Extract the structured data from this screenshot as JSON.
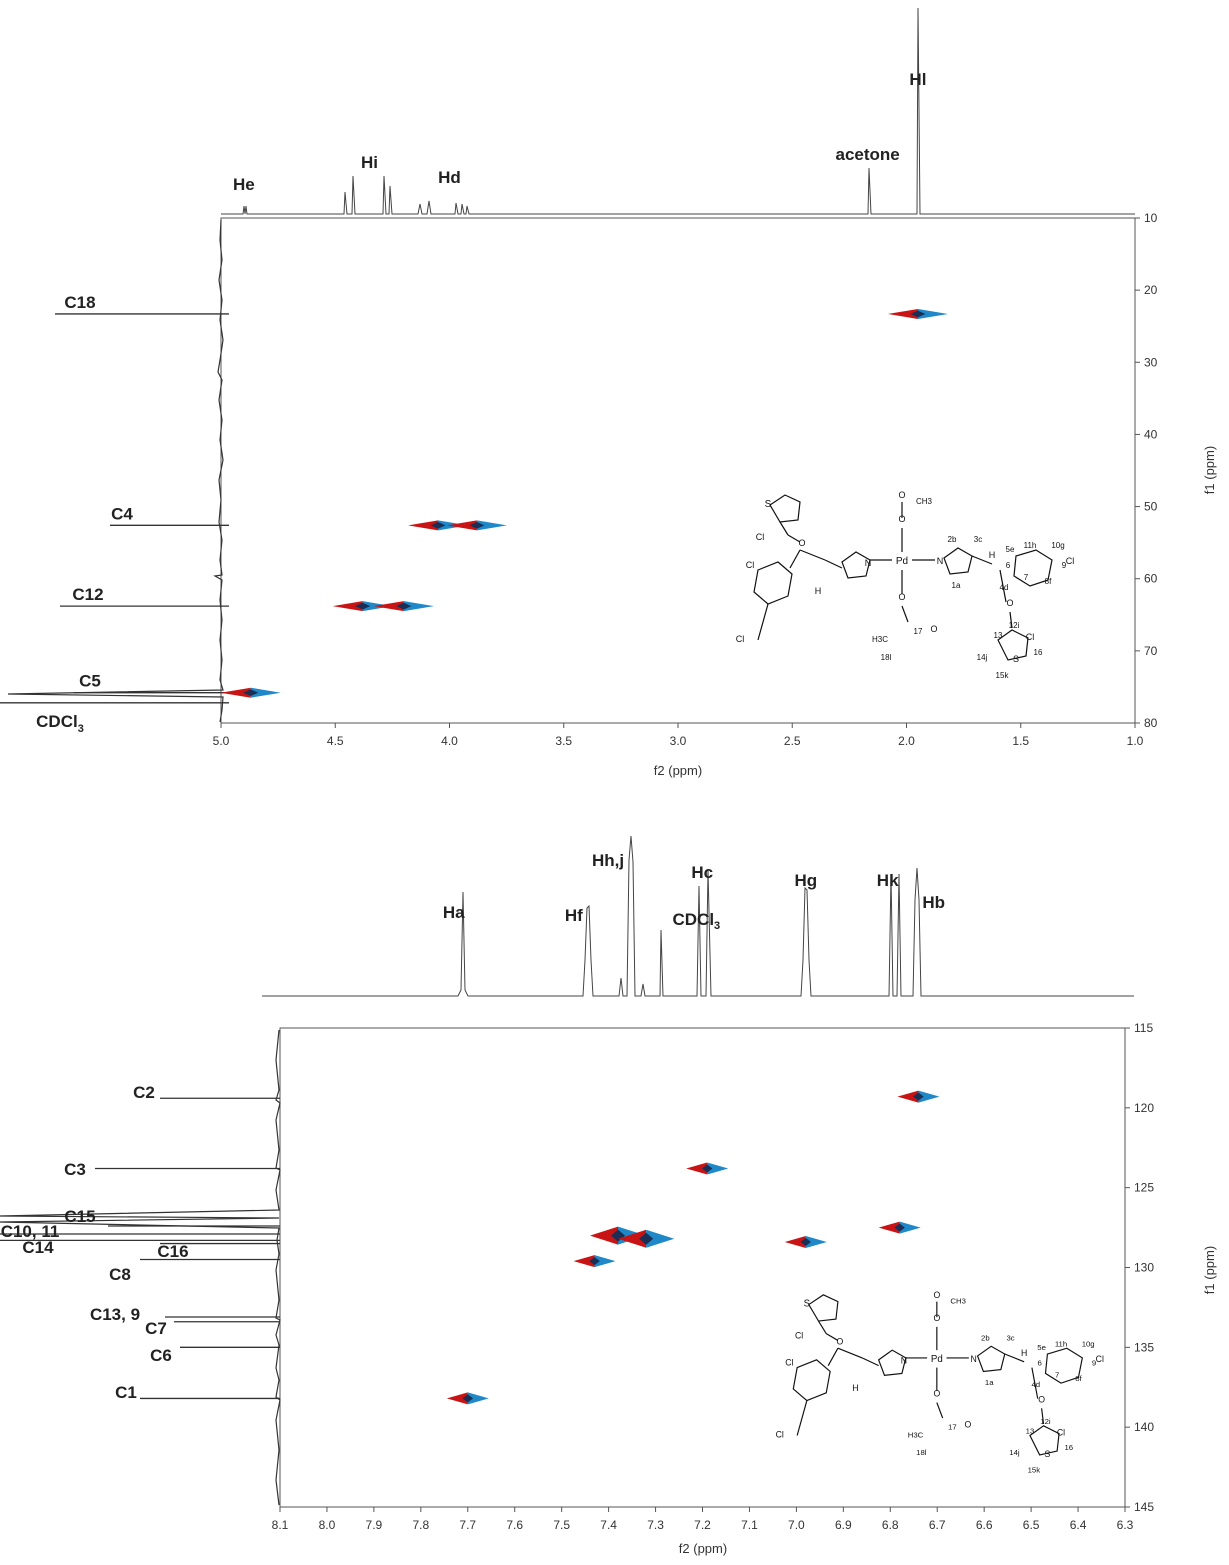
{
  "chart_data": [
    {
      "type": "heatmap",
      "xlabel": "f2 (ppm)",
      "ylabel": "f1 (ppm)",
      "xlim": [
        5.0,
        1.0
      ],
      "ylim": [
        10,
        80
      ],
      "x_ticks": [
        "5.0",
        "4.5",
        "4.0",
        "3.5",
        "3.0",
        "2.5",
        "2.0",
        "1.5",
        "1.0"
      ],
      "y_ticks": [
        "10",
        "20",
        "30",
        "40",
        "50",
        "60",
        "70",
        "80"
      ],
      "proton_peaks": [
        {
          "label": "He",
          "ppm": 4.9
        },
        {
          "label": "Hi",
          "ppm": 4.35
        },
        {
          "label": "Hd",
          "ppm": 4.0
        },
        {
          "label": "acetone",
          "ppm": 2.17
        },
        {
          "label": "Hl",
          "ppm": 1.95
        }
      ],
      "carbon_labels": [
        {
          "label": "C18",
          "ppm": 23.3
        },
        {
          "label": "C4",
          "ppm": 52.6
        },
        {
          "label": "C12",
          "ppm": 63.8
        },
        {
          "label": "C5",
          "ppm": 75.8
        },
        {
          "label": "CDCl",
          "sub": "3",
          "ppm": 77.2
        }
      ],
      "cross_peaks": [
        {
          "x": 1.95,
          "y": 23.3
        },
        {
          "x": 4.05,
          "y": 52.6
        },
        {
          "x": 3.88,
          "y": 52.6
        },
        {
          "x": 4.38,
          "y": 63.8
        },
        {
          "x": 4.2,
          "y": 63.8
        },
        {
          "x": 4.87,
          "y": 75.8
        }
      ],
      "structure_labels": [
        "S",
        "Cl",
        "O",
        "N",
        "Pd",
        "H",
        "CH3",
        "H3C",
        "2b",
        "3c",
        "1a",
        "5e",
        "11h",
        "10g",
        "9",
        "6",
        "7",
        "8f",
        "4d",
        "12i",
        "13",
        "14j",
        "15k",
        "16",
        "17",
        "18l"
      ]
    },
    {
      "type": "heatmap",
      "xlabel": "f2 (ppm)",
      "ylabel": "f1 (ppm)",
      "xlim": [
        8.1,
        6.3
      ],
      "ylim": [
        115,
        145
      ],
      "x_ticks": [
        "8.1",
        "8.0",
        "7.9",
        "7.8",
        "7.7",
        "7.6",
        "7.5",
        "7.4",
        "7.3",
        "7.2",
        "7.1",
        "7.0",
        "6.9",
        "6.8",
        "6.7",
        "6.6",
        "6.5",
        "6.4",
        "6.3"
      ],
      "y_ticks": [
        "115",
        "120",
        "125",
        "130",
        "135",
        "140",
        "145"
      ],
      "proton_peaks": [
        {
          "label": "Ha",
          "ppm": 7.7
        },
        {
          "label": "Hf",
          "ppm": 7.44
        },
        {
          "label": "Hh,j",
          "ppm": 7.35
        },
        {
          "label": "CDCl",
          "sub": "3",
          "ppm": 7.26
        },
        {
          "label": "Hc",
          "ppm": 7.19
        },
        {
          "label": "Hg",
          "ppm": 6.98
        },
        {
          "label": "Hk",
          "ppm": 6.78
        },
        {
          "label": "Hb",
          "ppm": 6.75
        }
      ],
      "carbon_labels": [
        {
          "label": "C2",
          "ppm": 119.4
        },
        {
          "label": "C3",
          "ppm": 123.8
        },
        {
          "label": "C15",
          "ppm": 127.4
        },
        {
          "label": "C10, 11",
          "ppm": 127.9
        },
        {
          "label": "C14",
          "ppm": 128.3
        },
        {
          "label": "C16",
          "ppm": 128.5
        },
        {
          "label": "C8",
          "ppm": 129.5
        },
        {
          "label": "C13, 9",
          "ppm": 133.1
        },
        {
          "label": "C7",
          "ppm": 133.4
        },
        {
          "label": "C6",
          "ppm": 135.0
        },
        {
          "label": "C1",
          "ppm": 138.2
        }
      ],
      "cross_peaks": [
        {
          "x": 6.74,
          "y": 119.3
        },
        {
          "x": 7.19,
          "y": 123.8
        },
        {
          "x": 7.38,
          "y": 128.0
        },
        {
          "x": 7.32,
          "y": 128.2
        },
        {
          "x": 7.43,
          "y": 129.6
        },
        {
          "x": 6.98,
          "y": 128.4
        },
        {
          "x": 6.78,
          "y": 127.5
        },
        {
          "x": 7.7,
          "y": 138.2
        }
      ],
      "structure_labels": [
        "S",
        "Cl",
        "O",
        "N",
        "Pd",
        "H",
        "CH3",
        "H3C",
        "2b",
        "3c",
        "1a",
        "5e",
        "11h",
        "10g",
        "9",
        "6",
        "7",
        "8f",
        "4d",
        "12i",
        "13",
        "14j",
        "15k",
        "16",
        "17",
        "18l"
      ]
    }
  ]
}
